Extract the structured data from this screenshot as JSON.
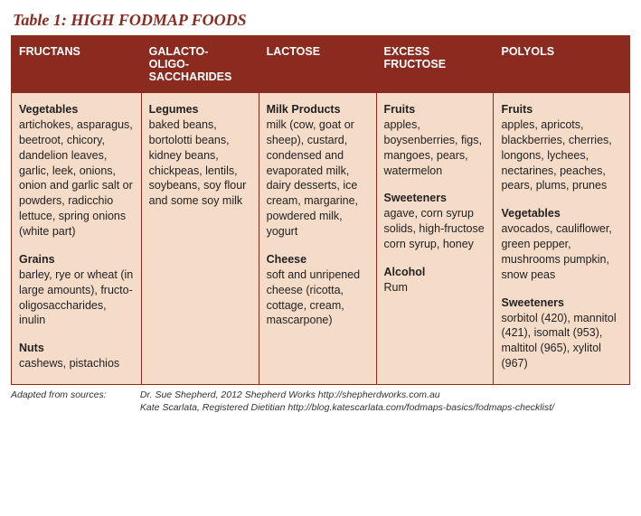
{
  "title": "Table 1: HIGH FODMAP FOODS",
  "columns": [
    {
      "header": "FRUCTANS",
      "width": "21%",
      "groups": [
        {
          "heading": "Vegetables",
          "text": "artichokes, asparagus, beetroot, chicory, dandelion leaves, garlic, leek, onions, onion and garlic salt or powders, radicchio lettuce, spring onions (white part)"
        },
        {
          "heading": "Grains",
          "text": "barley, rye or wheat (in large amounts), fructo-oligosaccharides, inulin"
        },
        {
          "heading": "Nuts",
          "text": "cashews, pistachios"
        }
      ]
    },
    {
      "header": "GALACTO- OLIGO-SACCHARIDES",
      "width": "19%",
      "groups": [
        {
          "heading": "Legumes",
          "text": "baked beans, bortolotti beans, kidney beans, chickpeas, lentils, soybeans, soy flour and some soy milk"
        }
      ]
    },
    {
      "header": "LACTOSE",
      "width": "19%",
      "groups": [
        {
          "heading": "Milk Products",
          "text": "milk (cow, goat or sheep), custard, condensed and evaporated milk, dairy desserts, ice cream, margarine, powdered milk, yogurt"
        },
        {
          "heading": "Cheese",
          "text": "soft and unripened cheese (ricotta, cottage, cream, mascarpone)"
        }
      ]
    },
    {
      "header": "EXCESS FRUCTOSE",
      "width": "19%",
      "groups": [
        {
          "heading": "Fruits",
          "text": "apples, boysenberries, figs, mangoes, pears, watermelon"
        },
        {
          "heading": "Sweeteners",
          "text": "agave, corn syrup solids, high-fructose corn syrup, honey"
        },
        {
          "heading": "Alcohol",
          "text": "Rum"
        }
      ]
    },
    {
      "header": "POLYOLS",
      "width": "22%",
      "groups": [
        {
          "heading": "Fruits",
          "text": "apples, apricots, blackberries, cherries, longons, lychees, nectarines, peaches, pears, plums, prunes"
        },
        {
          "heading": "Vegetables",
          "text": "avocados, cauliflower, green pepper, mushrooms pumpkin, snow peas"
        },
        {
          "heading": "Sweeteners",
          "text": "sorbitol (420), mannitol (421), isomalt (953), maltitol (965), xylitol (967)"
        }
      ]
    }
  ],
  "footer": {
    "label": "Adapted from sources:",
    "line1": "Dr. Sue Shepherd, 2012 Shepherd Works   http://shepherdworks.com.au",
    "line2": "Kate Scarlata, Registered Dietitian  http://blog.katescarlata.com/fodmaps-basics/fodmaps-checklist/"
  }
}
